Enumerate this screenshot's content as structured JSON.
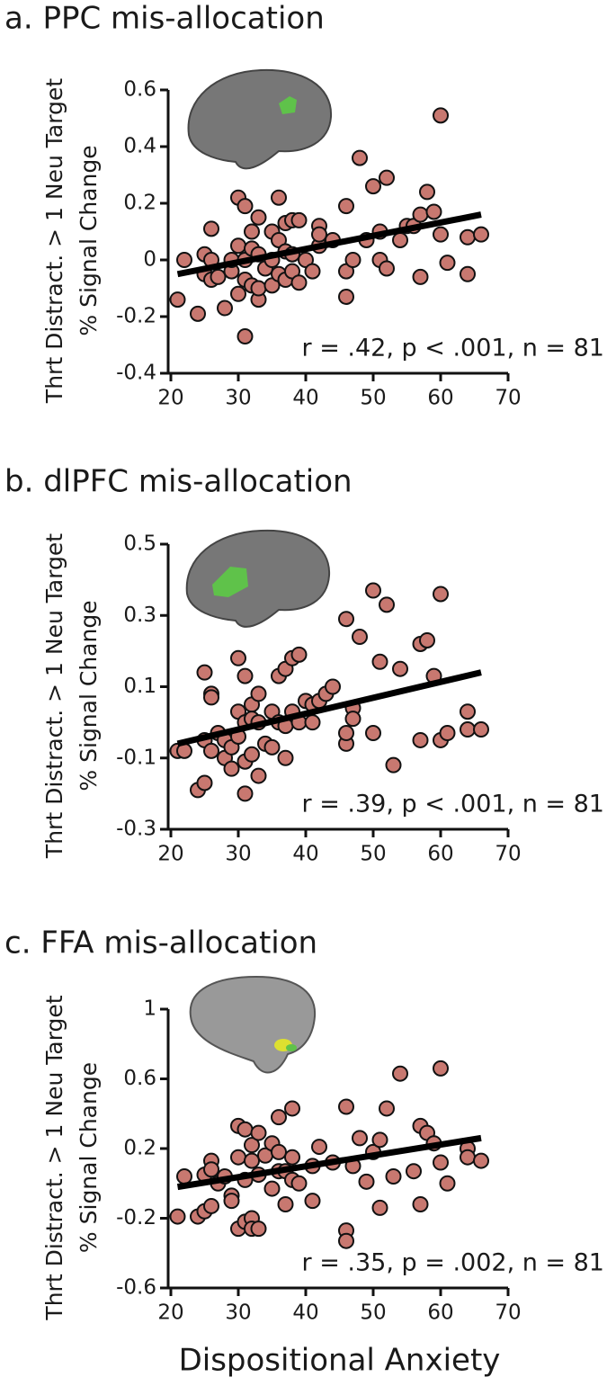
{
  "chart_data": [
    {
      "type": "scatter",
      "title": "a. PPC mis-allocation",
      "ylabel": [
        "Thrt Distract. > 1 Neu Target",
        "% Signal Change"
      ],
      "annotation": "r = .42, p < .001, n = 81",
      "color": "#c87870",
      "xlim": [
        20,
        70
      ],
      "xticks": [
        20,
        30,
        40,
        50,
        60,
        70
      ],
      "ylim": [
        -0.4,
        0.6
      ],
      "yticks": [
        -0.4,
        -0.2,
        0,
        0.2,
        0.4,
        0.6
      ],
      "x": [
        21,
        22,
        24,
        25,
        25,
        26,
        26,
        26,
        27,
        28,
        29,
        29,
        30,
        30,
        30,
        31,
        31,
        31,
        31,
        32,
        32,
        32,
        33,
        33,
        33,
        33,
        34,
        35,
        35,
        35,
        36,
        36,
        36,
        37,
        37,
        37,
        38,
        38,
        38,
        39,
        39,
        40,
        41,
        42,
        42,
        42,
        44,
        46,
        46,
        46,
        47,
        48,
        49,
        50,
        51,
        51,
        52,
        52,
        54,
        55,
        56,
        57,
        57,
        58,
        59,
        60,
        60,
        61,
        64,
        64,
        66
      ],
      "values": [
        -0.14,
        0.0,
        -0.19,
        0.02,
        -0.05,
        0.11,
        0.0,
        -0.07,
        -0.06,
        -0.17,
        -0.04,
        0.0,
        0.22,
        0.05,
        -0.12,
        0.19,
        0.0,
        -0.27,
        -0.07,
        0.1,
        0.04,
        -0.09,
        0.15,
        0.02,
        -0.14,
        -0.1,
        -0.03,
        0.1,
        0.0,
        -0.09,
        0.07,
        0.22,
        -0.05,
        0.13,
        0.03,
        -0.07,
        0.14,
        0.02,
        -0.04,
        0.14,
        -0.08,
        0.0,
        -0.04,
        0.12,
        0.05,
        0.09,
        0.07,
        0.19,
        -0.04,
        -0.13,
        0.0,
        0.36,
        0.07,
        0.26,
        0.1,
        0.0,
        0.29,
        -0.03,
        0.07,
        0.12,
        0.12,
        0.16,
        -0.06,
        0.24,
        0.17,
        0.51,
        0.09,
        -0.01,
        0.08,
        -0.05,
        0.09
      ],
      "fit": {
        "x": [
          21,
          66
        ],
        "values": [
          -0.05,
          0.16
        ]
      }
    },
    {
      "type": "scatter",
      "title": "b. dlPFC mis-allocation",
      "ylabel": [
        "Thrt Distract. > 1 Neu Target",
        "% Signal Change"
      ],
      "annotation": "r = .39, p < .001, n = 81",
      "color": "#c87870",
      "xlim": [
        20,
        70
      ],
      "xticks": [
        20,
        30,
        40,
        50,
        60,
        70
      ],
      "ylim": [
        -0.3,
        0.5
      ],
      "yticks": [
        -0.3,
        -0.1,
        0.1,
        0.3,
        0.5
      ],
      "x": [
        21,
        22,
        24,
        25,
        25,
        25,
        26,
        26,
        26,
        27,
        28,
        28,
        29,
        29,
        30,
        30,
        30,
        31,
        31,
        31,
        31,
        32,
        32,
        32,
        33,
        33,
        33,
        34,
        35,
        35,
        36,
        36,
        37,
        37,
        37,
        38,
        38,
        39,
        39,
        40,
        41,
        41,
        42,
        43,
        44,
        46,
        46,
        46,
        47,
        47,
        48,
        50,
        50,
        51,
        52,
        53,
        54,
        57,
        57,
        58,
        59,
        60,
        60,
        61,
        64,
        64,
        66
      ],
      "values": [
        -0.08,
        -0.08,
        -0.19,
        0.14,
        -0.17,
        -0.05,
        0.08,
        0.07,
        -0.08,
        -0.03,
        -0.1,
        -0.05,
        -0.13,
        -0.07,
        0.18,
        0.03,
        -0.04,
        0.13,
        -0.2,
        0.0,
        -0.11,
        0.05,
        0.01,
        -0.09,
        0.08,
        0.0,
        -0.15,
        -0.06,
        0.03,
        -0.07,
        0.13,
        0.0,
        0.15,
        -0.1,
        -0.01,
        0.18,
        0.03,
        0.19,
        0.0,
        0.06,
        0.05,
        0.0,
        0.06,
        0.08,
        0.1,
        0.29,
        -0.06,
        -0.03,
        0.04,
        0.01,
        0.24,
        0.37,
        -0.03,
        0.17,
        0.33,
        -0.12,
        0.15,
        0.22,
        -0.05,
        0.23,
        0.13,
        0.36,
        -0.05,
        -0.03,
        0.03,
        -0.02,
        -0.02
      ],
      "fit": {
        "x": [
          21,
          66
        ],
        "values": [
          -0.06,
          0.14
        ]
      }
    },
    {
      "type": "scatter",
      "title": "c. FFA mis-allocation",
      "ylabel": [
        "Thrt Distract. > 1 Neu Target",
        "% Signal Change"
      ],
      "xlabel": "Dispositional Anxiety",
      "annotation": "r = .35, p = .002, n = 81",
      "color": "#c87870",
      "xlim": [
        20,
        70
      ],
      "xticks": [
        20,
        30,
        40,
        50,
        60,
        70
      ],
      "ylim": [
        -0.6,
        1
      ],
      "yticks": [
        -0.6,
        -0.2,
        0.2,
        0.6,
        1
      ],
      "x": [
        21,
        22,
        24,
        25,
        25,
        26,
        26,
        26,
        27,
        28,
        29,
        29,
        30,
        30,
        30,
        31,
        31,
        31,
        32,
        32,
        32,
        32,
        33,
        33,
        33,
        34,
        35,
        35,
        36,
        36,
        36,
        37,
        37,
        38,
        38,
        38,
        39,
        41,
        41,
        42,
        44,
        46,
        46,
        46,
        47,
        48,
        49,
        50,
        51,
        51,
        52,
        53,
        54,
        56,
        57,
        57,
        58,
        59,
        60,
        60,
        61,
        64,
        64,
        66
      ],
      "values": [
        -0.19,
        0.04,
        -0.19,
        0.05,
        -0.16,
        0.13,
        0.08,
        -0.13,
        0.0,
        0.04,
        -0.07,
        -0.1,
        0.33,
        0.15,
        -0.26,
        0.31,
        0.02,
        -0.22,
        0.22,
        0.13,
        -0.2,
        -0.26,
        0.29,
        0.05,
        -0.26,
        0.16,
        0.23,
        -0.03,
        0.38,
        0.07,
        0.18,
        0.07,
        -0.12,
        0.15,
        0.02,
        0.43,
        0.0,
        0.1,
        -0.1,
        0.21,
        0.12,
        0.44,
        -0.27,
        -0.33,
        0.1,
        0.26,
        0.01,
        0.18,
        0.25,
        -0.14,
        0.43,
        0.04,
        0.63,
        0.07,
        0.33,
        -0.12,
        0.29,
        0.23,
        0.66,
        0.12,
        0.0,
        0.2,
        0.15,
        0.13
      ],
      "fit": {
        "x": [
          21,
          66
        ],
        "values": [
          -0.02,
          0.26
        ]
      }
    }
  ]
}
